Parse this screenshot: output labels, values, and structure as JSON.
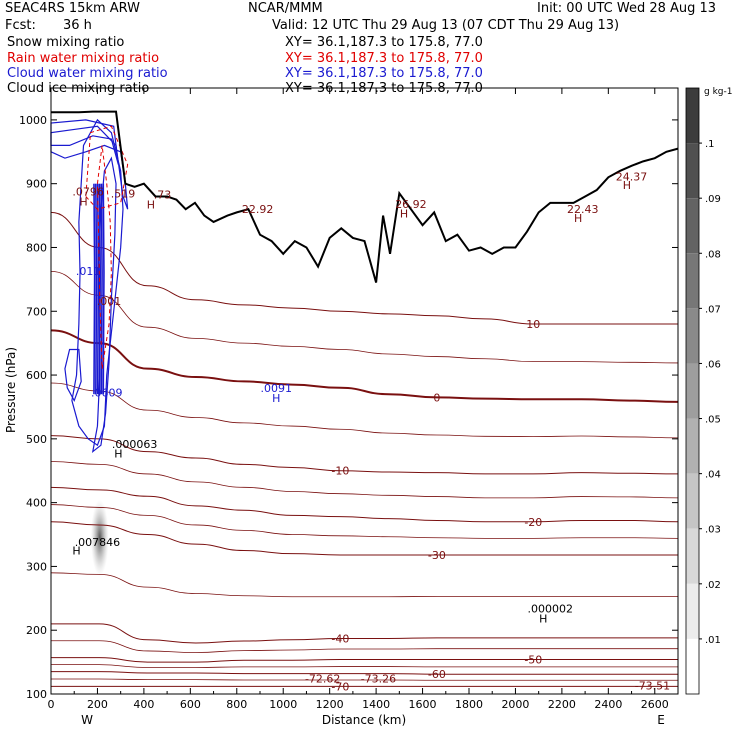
{
  "header": {
    "model": "SEAC4RS 15km ARW",
    "center": "NCAR/MMM",
    "init": "Init: 00 UTC Wed 28 Aug 13",
    "fcst_label": "Fcst:",
    "fcst_value": "36 h",
    "valid": "Valid: 12 UTC Thu 29 Aug 13 (07 CDT Thu 29 Aug 13)"
  },
  "legend": [
    {
      "name": "Snow mixing ratio",
      "xy": "XY=   36.1,187.3 to 175.8, 77.0",
      "color": "#000000"
    },
    {
      "name": "Rain water mixing ratio",
      "xy": "XY=   36.1,187.3 to 175.8, 77.0",
      "color": "#e00000"
    },
    {
      "name": "Cloud water mixing ratio",
      "xy": "XY=   36.1,187.3 to 175.8, 77.0",
      "color": "#1a1ad0"
    },
    {
      "name": "Cloud ice mixing ratio",
      "xy": "XY=   36.1,187.3 to 175.8, 77.0",
      "color": "#000000"
    }
  ],
  "colorbar": {
    "unit": "g kg-1",
    "ticks": [
      ".1",
      ".09",
      ".08",
      ".07",
      ".06",
      ".05",
      ".04",
      ".03",
      ".02",
      ".01"
    ]
  },
  "colors": {
    "temperature": "#7a1010",
    "terrain": "#000000",
    "cloud_water": "#1a1ad0",
    "rain": "#e00000"
  },
  "chart_data": {
    "type": "line",
    "xlabel": "Distance (km)",
    "ylabel": "Pressure (hPa)",
    "xlim": [
      0,
      2700
    ],
    "ylim": [
      1050,
      100
    ],
    "x_ticks": [
      "0",
      "200",
      "400",
      "600",
      "800",
      "1000",
      "1200",
      "1400",
      "1600",
      "1800",
      "2000",
      "2200",
      "2400",
      "2600"
    ],
    "y_ticks": [
      "200",
      "300",
      "400",
      "500",
      "600",
      "700",
      "800",
      "900",
      "1000"
    ],
    "y_top_label": "100",
    "end_labels": {
      "left": "W",
      "right": "E"
    },
    "terrain": {
      "x": [
        0,
        60,
        120,
        180,
        240,
        280,
        320,
        360,
        400,
        450,
        500,
        540,
        580,
        620,
        660,
        700,
        760,
        800,
        850,
        900,
        950,
        1000,
        1050,
        1100,
        1150,
        1200,
        1250,
        1300,
        1350,
        1400,
        1430,
        1460,
        1500,
        1550,
        1600,
        1650,
        1700,
        1750,
        1800,
        1850,
        1900,
        1950,
        2000,
        2050,
        2100,
        2150,
        2200,
        2250,
        2300,
        2350,
        2400,
        2450,
        2500,
        2550,
        2600,
        2650,
        2700
      ],
      "p": [
        1012,
        1012,
        1012,
        1013,
        1013,
        1013,
        900,
        895,
        900,
        880,
        880,
        875,
        860,
        870,
        850,
        840,
        850,
        855,
        860,
        820,
        810,
        790,
        810,
        800,
        770,
        815,
        830,
        815,
        810,
        745,
        850,
        790,
        885,
        860,
        835,
        855,
        810,
        820,
        795,
        800,
        790,
        800,
        800,
        825,
        855,
        870,
        870,
        870,
        880,
        890,
        910,
        920,
        928,
        935,
        940,
        950,
        955
      ]
    },
    "temperature_contours": [
      {
        "value": "-70",
        "p": [
          112,
          112,
          112,
          112,
          112,
          112,
          112,
          112,
          112,
          112,
          112,
          112,
          112,
          112
        ]
      },
      {
        "value": "-60",
        "p": [
          135,
          135,
          133,
          133,
          132,
          132,
          132,
          132,
          131,
          131,
          131,
          131,
          131,
          131
        ]
      },
      {
        "value": "-50",
        "p": [
          157,
          157,
          150,
          150,
          153,
          153,
          154,
          154,
          154,
          154,
          154,
          154,
          154,
          154
        ]
      },
      {
        "value": "-40",
        "p": [
          210,
          210,
          185,
          180,
          183,
          185,
          187,
          187,
          188,
          188,
          188,
          188,
          188,
          188
        ]
      },
      {
        "value": "-30",
        "p": [
          370,
          365,
          350,
          335,
          325,
          320,
          318,
          318,
          318,
          318,
          318,
          318,
          318,
          318
        ]
      },
      {
        "value": "-20",
        "p": [
          424,
          420,
          410,
          395,
          388,
          380,
          378,
          375,
          372,
          370,
          370,
          372,
          372,
          370
        ]
      },
      {
        "value": "-10",
        "p": [
          505,
          500,
          480,
          470,
          460,
          455,
          450,
          448,
          447,
          445,
          445,
          447,
          446,
          445
        ]
      },
      {
        "value": "0",
        "p": [
          670,
          650,
          610,
          597,
          590,
          585,
          580,
          570,
          565,
          563,
          562,
          562,
          560,
          558
        ]
      },
      {
        "value": "10",
        "p": [
          855,
          800,
          740,
          718,
          710,
          705,
          700,
          696,
          693,
          688,
          680,
          680,
          680,
          680
        ]
      }
    ],
    "annotations": [
      {
        "text": "-72.62",
        "x": 1170,
        "p": 124
      },
      {
        "text": "-73.26",
        "x": 1410,
        "p": 124
      },
      {
        "text": "-73.51",
        "x": 2590,
        "p": 113
      },
      {
        "text": "H",
        "x": 2120,
        "p": 218
      },
      {
        "text": ".000002",
        "x": 2150,
        "p": 234
      },
      {
        "text": "H",
        "x": 110,
        "p": 325
      },
      {
        "text": ".007846",
        "x": 200,
        "p": 338
      },
      {
        "text": "H",
        "x": 290,
        "p": 477
      },
      {
        "text": ".000063",
        "x": 360,
        "p": 492
      },
      {
        "text": ".0609",
        "x": 240,
        "p": 573
      },
      {
        "text": "H",
        "x": 970,
        "p": 564
      },
      {
        "text": ".0091",
        "x": 970,
        "p": 580
      },
      {
        "text": ".001",
        "x": 250,
        "p": 716
      },
      {
        "text": ".011",
        "x": 160,
        "p": 763
      },
      {
        "text": "22.92",
        "x": 890,
        "p": 860
      },
      {
        "text": "H",
        "x": 1520,
        "p": 853
      },
      {
        "text": "26.92",
        "x": 1550,
        "p": 868
      },
      {
        "text": "H",
        "x": 2270,
        "p": 846
      },
      {
        "text": "22.43",
        "x": 2290,
        "p": 860
      },
      {
        "text": "H",
        "x": 2480,
        "p": 898
      },
      {
        "text": "24.37",
        "x": 2500,
        "p": 911
      },
      {
        "text": "H",
        "x": 140,
        "p": 872
      },
      {
        "text": ".0796",
        "x": 160,
        "p": 888
      },
      {
        "text": ".519",
        "x": 310,
        "p": 885
      },
      {
        "text": "H",
        "x": 430,
        "p": 867
      },
      {
        "text": ".73",
        "x": 480,
        "p": 883
      }
    ]
  }
}
